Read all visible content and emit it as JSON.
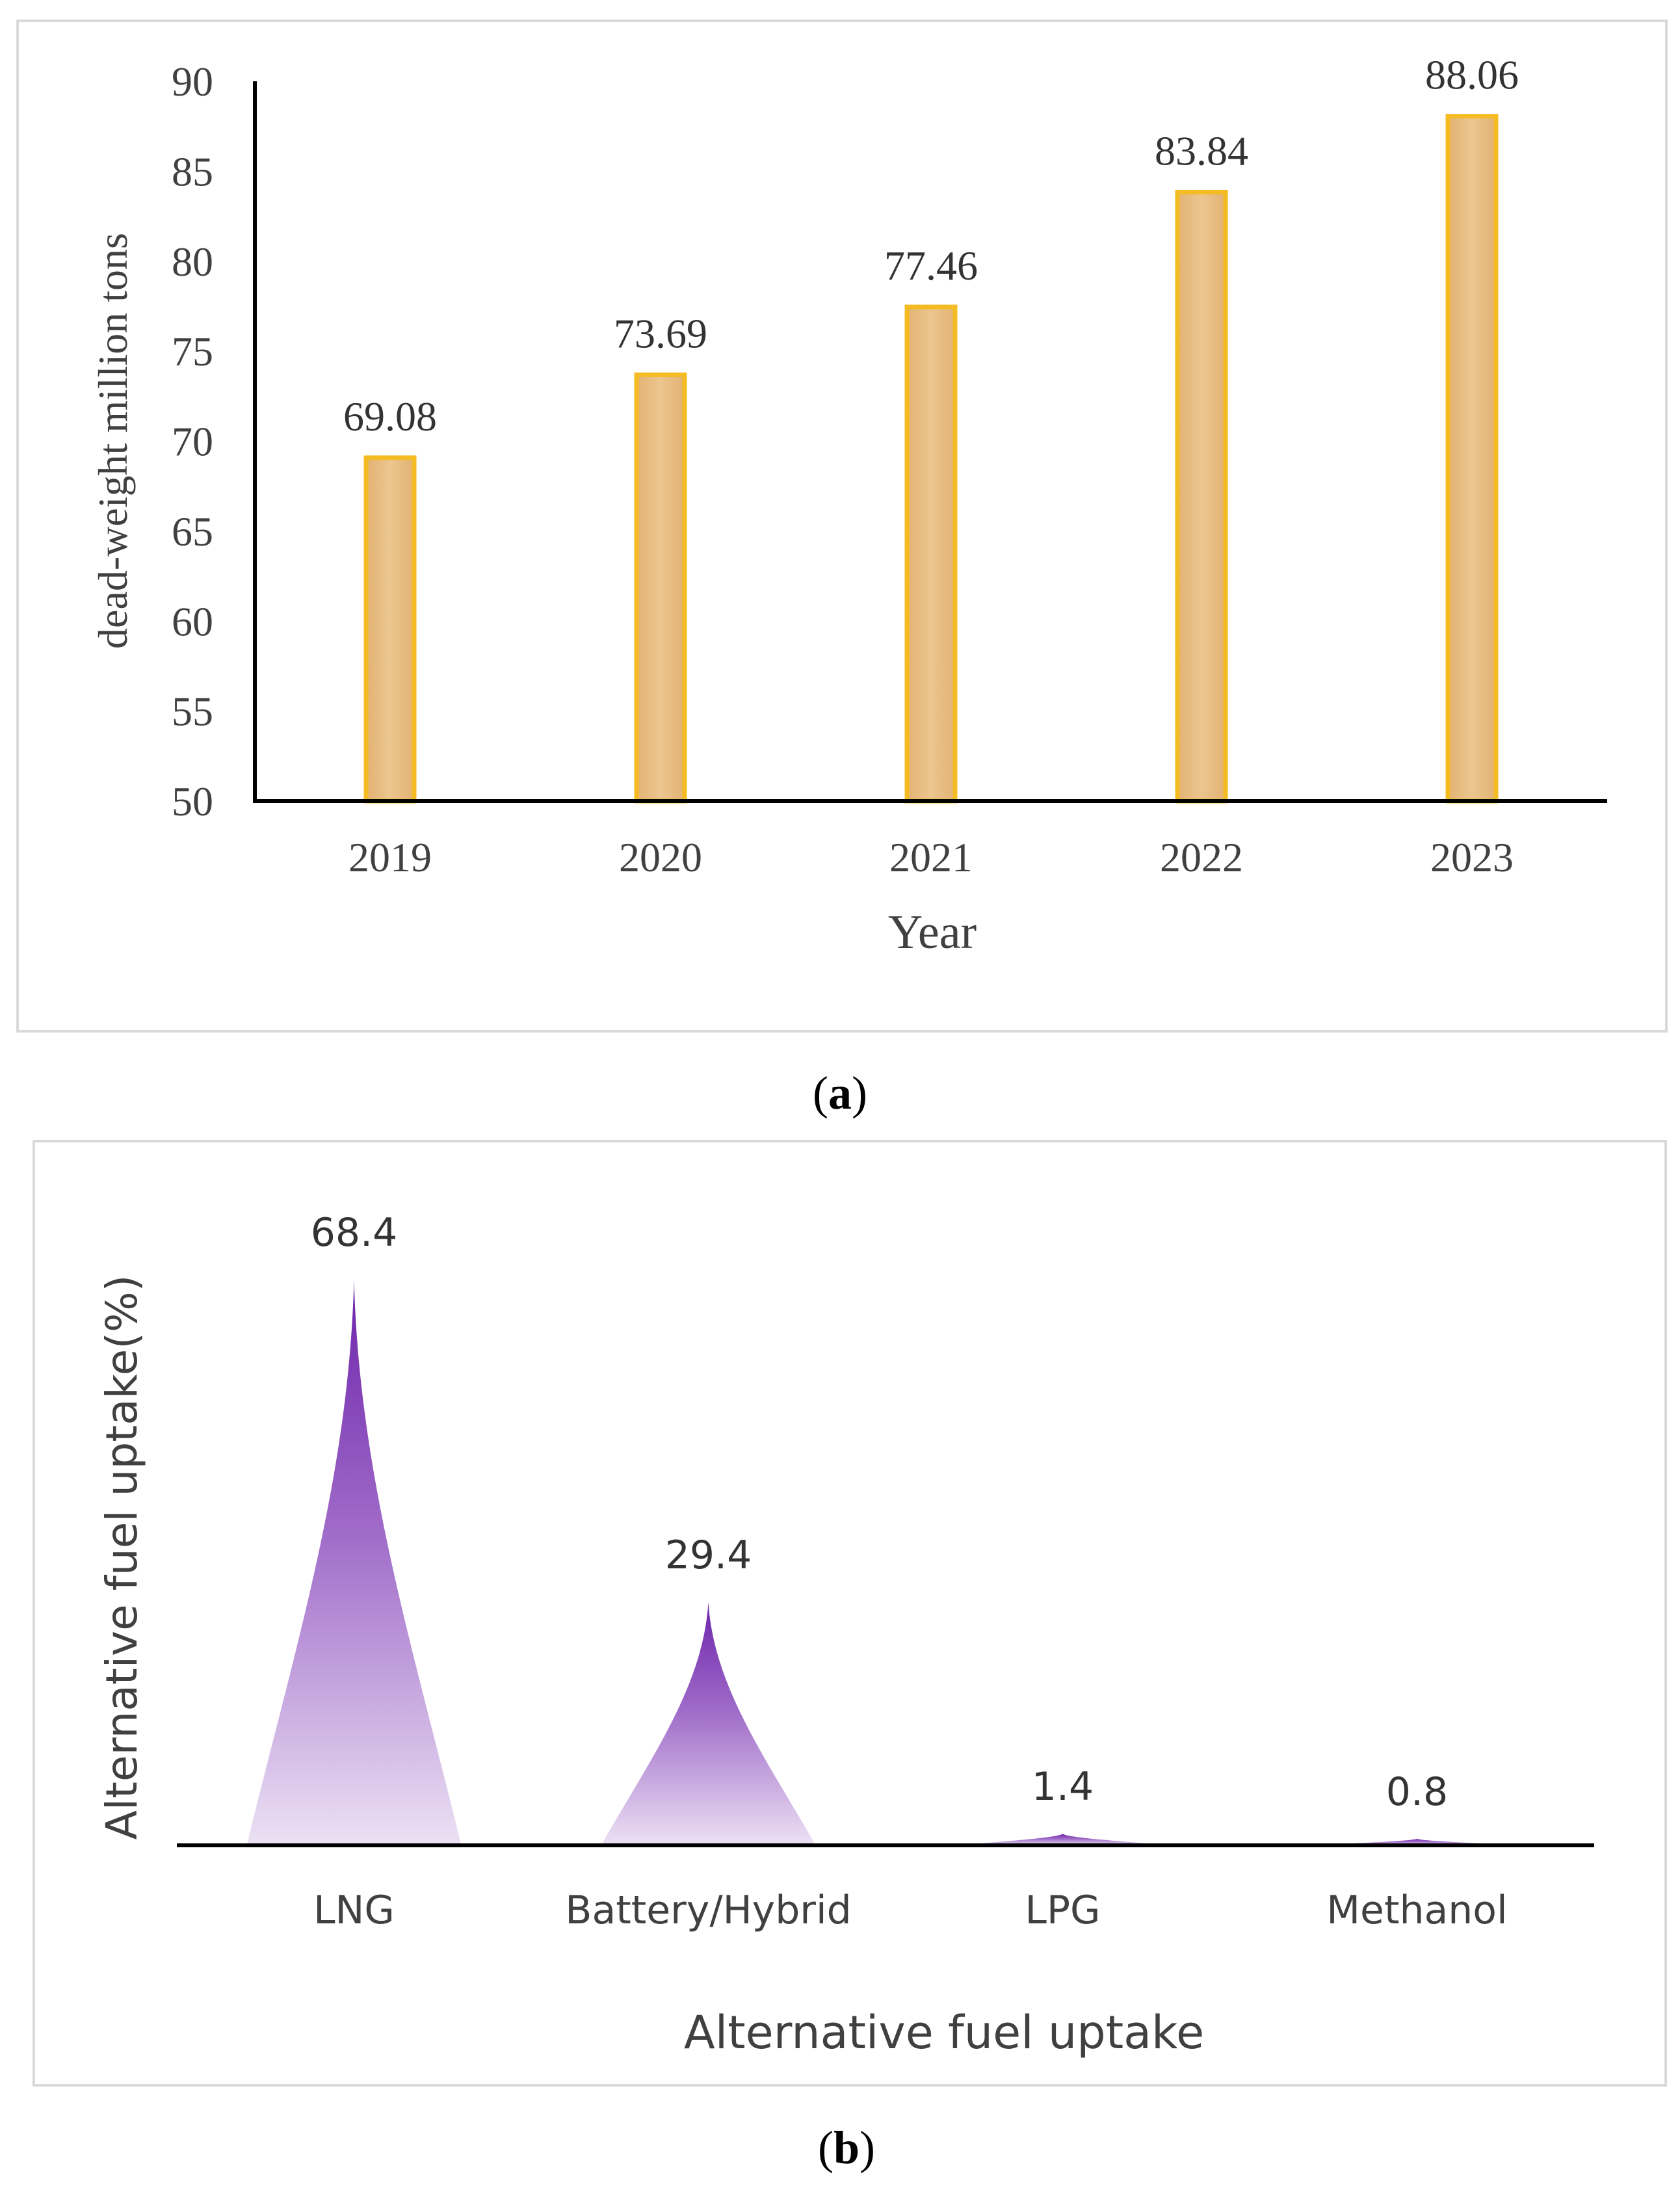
{
  "chart_data": [
    {
      "type": "bar",
      "panel_label": "a",
      "categories": [
        "2019",
        "2020",
        "2021",
        "2022",
        "2023"
      ],
      "values": [
        69.08,
        73.69,
        77.46,
        83.84,
        88.06
      ],
      "data_labels": [
        "69.08",
        "73.69",
        "77.46",
        "83.84",
        "88.06"
      ],
      "xlabel": "Year",
      "ylabel": "dead-weight million tons",
      "ylim": [
        50,
        90
      ],
      "yticks": [
        "50",
        "55",
        "60",
        "65",
        "70",
        "75",
        "80",
        "85",
        "90"
      ],
      "grid": false,
      "colors": {
        "bar_fill": "#e6b97c",
        "bar_edge": "#f5bb22",
        "axis": "#000000",
        "text": "#333333",
        "frame": "#d9d9d9"
      }
    },
    {
      "type": "bar",
      "style": "cone",
      "panel_label": "b",
      "categories": [
        "LNG",
        "Battery/Hybrid",
        "LPG",
        "Methanol"
      ],
      "values": [
        68.4,
        29.4,
        1.4,
        0.8
      ],
      "data_labels": [
        "68.4",
        "29.4",
        "1.4",
        "0.8"
      ],
      "xlabel": "Alternative fuel uptake",
      "ylabel": "Alternative fuel uptake(%)",
      "ylim": [
        0,
        68.4
      ],
      "grid": false,
      "colors": {
        "cone_top": "#7b35b5",
        "cone_bottom": "#e3d3ef",
        "axis": "#000000",
        "text": "#333333",
        "frame": "#d9d9d9"
      }
    }
  ],
  "captions": {
    "a_open": "(",
    "a_letter": "a",
    "a_close": ")",
    "b_open": "(",
    "b_letter": "b",
    "b_close": ")"
  }
}
